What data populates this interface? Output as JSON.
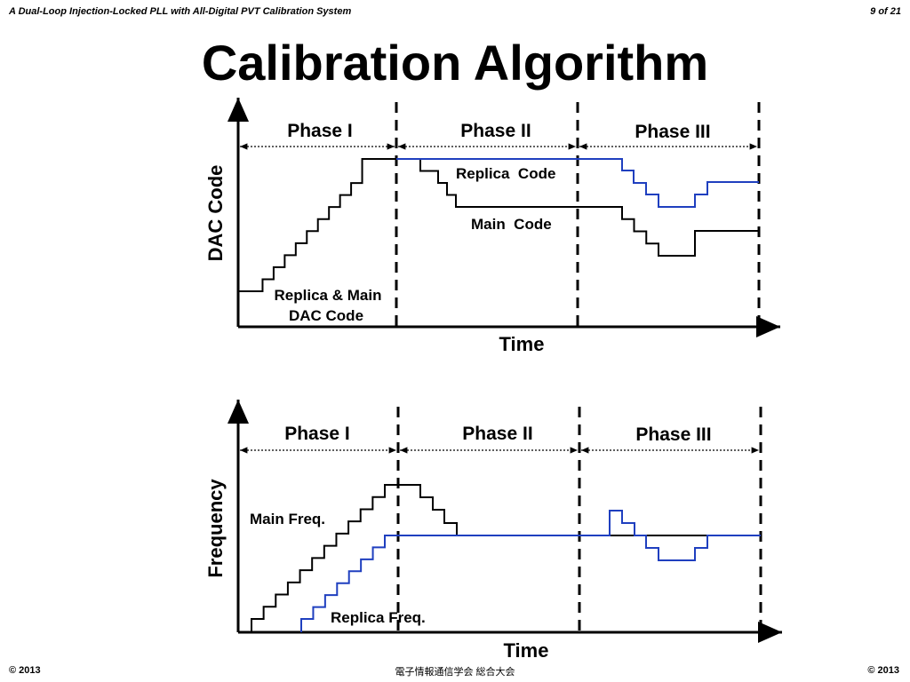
{
  "header": {
    "left": "A Dual-Loop Injection-Locked PLL with All-Digital PVT Calibration System",
    "right": "9 of 21"
  },
  "title": "Calibration Algorithm",
  "diagrams": [
    {
      "y_label": "DAC Code",
      "x_label": "Time",
      "phases": [
        "Phase I",
        "Phase II",
        "Phase III"
      ],
      "labels": [
        "Replica  Code",
        "Main  Code",
        "Replica & Main",
        "DAC Code"
      ]
    },
    {
      "y_label": "Frequency",
      "x_label": "Time",
      "phases": [
        "Phase I",
        "Phase II",
        "Phase III"
      ],
      "labels": [
        "Main Freq.",
        "Replica Freq."
      ]
    }
  ],
  "footer": {
    "left": "© 2013",
    "center": "電子情報通信学会 総合大会",
    "right": "© 2013"
  }
}
